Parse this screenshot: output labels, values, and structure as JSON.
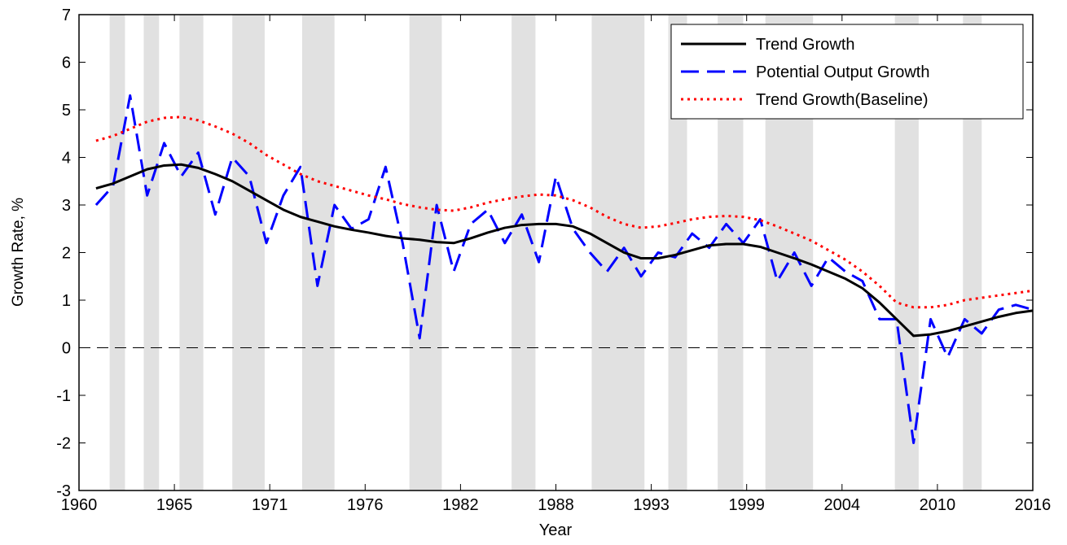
{
  "chart_data": {
    "type": "line",
    "xlabel": "Year",
    "ylabel": "Growth Rate, %",
    "xlim": [
      1960,
      2016
    ],
    "xticks": [
      1960,
      {
        "value": 1965.6,
        "label": "1965"
      },
      {
        "value": 1971.2,
        "label": "1971"
      },
      {
        "value": 1976.8,
        "label": "1976"
      },
      {
        "value": 1982.4,
        "label": "1982"
      },
      1988,
      {
        "value": 1993.6,
        "label": "1993"
      },
      {
        "value": 1999.2,
        "label": "1999"
      },
      {
        "value": 2004.8,
        "label": "2004"
      },
      {
        "value": 2010.4,
        "label": "2010"
      },
      2016
    ],
    "ylim": [
      -3,
      7
    ],
    "yticks": [
      -3,
      -2,
      -1,
      0,
      1,
      2,
      3,
      4,
      5,
      6,
      7
    ],
    "grid": false,
    "hline": 0,
    "legend": "upper right",
    "shaded_color": "#e1e1e1",
    "shaded_periods": [
      [
        1961.8,
        1962.7
      ],
      [
        1963.8,
        1964.7
      ],
      [
        1965.9,
        1967.3
      ],
      [
        1969.0,
        1970.9
      ],
      [
        1973.1,
        1975.0
      ],
      [
        1979.4,
        1981.3
      ],
      [
        1985.4,
        1986.8
      ],
      [
        1990.1,
        1993.2
      ],
      [
        1994.6,
        1995.7
      ],
      [
        1997.5,
        1999.0
      ],
      [
        2000.3,
        2003.1
      ],
      [
        2007.9,
        2009.3
      ],
      [
        2011.9,
        2013.0
      ]
    ],
    "x": [
      1961,
      1962,
      1963,
      1964,
      1965,
      1966,
      1967,
      1968,
      1969,
      1970,
      1971,
      1972,
      1973,
      1974,
      1975,
      1976,
      1977,
      1978,
      1979,
      1980,
      1981,
      1982,
      1983,
      1984,
      1985,
      1986,
      1987,
      1988,
      1989,
      1990,
      1991,
      1992,
      1993,
      1994,
      1995,
      1996,
      1997,
      1998,
      1999,
      2000,
      2001,
      2002,
      2003,
      2004,
      2005,
      2006,
      2007,
      2008,
      2009,
      2010,
      2011,
      2012,
      2013,
      2014,
      2015,
      2016
    ],
    "series": [
      {
        "name": "Trend Growth",
        "color": "#000000",
        "line_style": "solid",
        "values": [
          3.35,
          3.45,
          3.6,
          3.75,
          3.83,
          3.85,
          3.78,
          3.65,
          3.5,
          3.3,
          3.1,
          2.9,
          2.75,
          2.65,
          2.55,
          2.48,
          2.42,
          2.35,
          2.3,
          2.27,
          2.22,
          2.2,
          2.3,
          2.42,
          2.52,
          2.58,
          2.6,
          2.6,
          2.55,
          2.4,
          2.2,
          2.0,
          1.88,
          1.88,
          1.95,
          2.05,
          2.15,
          2.18,
          2.18,
          2.12,
          2.0,
          1.88,
          1.75,
          1.6,
          1.45,
          1.25,
          0.95,
          0.6,
          0.25,
          0.28,
          0.35,
          0.45,
          0.55,
          0.65,
          0.73,
          0.78
        ]
      },
      {
        "name": "Potential Output Growth",
        "color": "#0000ff",
        "line_style": "dashed",
        "values": [
          3.0,
          3.4,
          5.3,
          3.2,
          4.3,
          3.6,
          4.1,
          2.8,
          4.0,
          3.6,
          2.2,
          3.2,
          3.8,
          1.3,
          3.0,
          2.5,
          2.7,
          3.8,
          2.2,
          0.2,
          3.0,
          1.6,
          2.6,
          2.9,
          2.2,
          2.8,
          1.8,
          3.6,
          2.5,
          2.0,
          1.6,
          2.1,
          1.5,
          2.0,
          1.9,
          2.4,
          2.1,
          2.6,
          2.2,
          2.7,
          1.4,
          2.0,
          1.3,
          1.9,
          1.6,
          1.4,
          0.6,
          0.6,
          -2.0,
          0.6,
          -0.2,
          0.6,
          0.3,
          0.8,
          0.9,
          0.8
        ]
      },
      {
        "name": "Trend Growth(Baseline)",
        "color": "#ff0000",
        "line_style": "dotted",
        "values": [
          4.35,
          4.45,
          4.6,
          4.75,
          4.83,
          4.85,
          4.78,
          4.65,
          4.5,
          4.3,
          4.05,
          3.85,
          3.65,
          3.5,
          3.4,
          3.3,
          3.2,
          3.12,
          3.02,
          2.95,
          2.9,
          2.88,
          2.95,
          3.05,
          3.12,
          3.18,
          3.22,
          3.2,
          3.1,
          2.95,
          2.75,
          2.6,
          2.52,
          2.55,
          2.62,
          2.7,
          2.75,
          2.77,
          2.75,
          2.68,
          2.55,
          2.4,
          2.25,
          2.05,
          1.85,
          1.6,
          1.3,
          0.95,
          0.85,
          0.85,
          0.9,
          1.0,
          1.05,
          1.1,
          1.15,
          1.2
        ]
      }
    ]
  }
}
